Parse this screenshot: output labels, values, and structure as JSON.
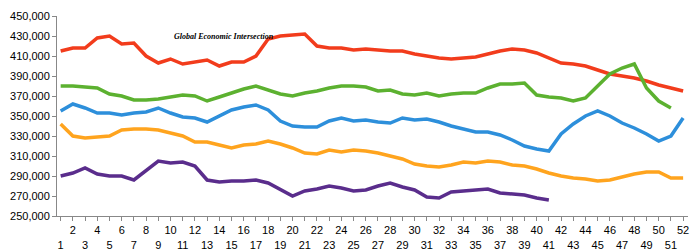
{
  "chart_data": {
    "type": "line",
    "annotations": [
      "Global Economic Intersection"
    ],
    "categories": [
      "1",
      "2",
      "3",
      "4",
      "5",
      "6",
      "7",
      "8",
      "9",
      "10",
      "11",
      "12",
      "13",
      "14",
      "15",
      "16",
      "17",
      "18",
      "19",
      "20",
      "21",
      "22",
      "23",
      "24",
      "25",
      "26",
      "27",
      "28",
      "29",
      "30",
      "31",
      "32",
      "33",
      "34",
      "35",
      "36",
      "37",
      "38",
      "39",
      "40",
      "41",
      "42",
      "43",
      "44",
      "45",
      "46",
      "47",
      "48",
      "49",
      "50",
      "51",
      "52"
    ],
    "series": [
      {
        "color": "#f23c1c",
        "values": [
          415000,
          418000,
          418000,
          428000,
          430000,
          422000,
          423000,
          410000,
          403000,
          407000,
          402000,
          404000,
          406000,
          400000,
          404000,
          404000,
          410000,
          427000,
          430000,
          431000,
          432000,
          420000,
          418000,
          418000,
          416000,
          417000,
          416000,
          415000,
          415000,
          412000,
          410000,
          408000,
          407000,
          408000,
          409000,
          412000,
          415000,
          417000,
          416000,
          413000,
          408000,
          403000,
          402000,
          400000,
          396000,
          392000,
          390000,
          388000,
          385000,
          381000,
          378000,
          375000
        ]
      },
      {
        "color": "#5cb130",
        "values": [
          380000,
          380000,
          379000,
          378000,
          372000,
          370000,
          366000,
          366000,
          367000,
          369000,
          371000,
          370000,
          365000,
          369000,
          373000,
          377000,
          380000,
          376000,
          372000,
          370000,
          373000,
          375000,
          378000,
          380000,
          380000,
          379000,
          375000,
          376000,
          372000,
          371000,
          373000,
          370000,
          372000,
          373000,
          373000,
          378000,
          382000,
          382000,
          383000,
          371000,
          369000,
          368000,
          365000,
          368000,
          380000,
          392000,
          398000,
          402000,
          378000,
          365000,
          358000,
          null
        ]
      },
      {
        "color": "#2d8fdb",
        "values": [
          355000,
          362000,
          358000,
          353000,
          353000,
          351000,
          353000,
          354000,
          358000,
          353000,
          349000,
          348000,
          344000,
          350000,
          356000,
          359000,
          361000,
          356000,
          345000,
          340000,
          339000,
          339000,
          345000,
          348000,
          345000,
          346000,
          344000,
          343000,
          348000,
          346000,
          347000,
          344000,
          340000,
          337000,
          334000,
          334000,
          331000,
          326000,
          320000,
          317000,
          315000,
          332000,
          342000,
          350000,
          355000,
          350000,
          343000,
          338000,
          332000,
          325000,
          330000,
          348000
        ]
      },
      {
        "color": "#ffa41e",
        "values": [
          342000,
          330000,
          328000,
          329000,
          330000,
          336000,
          337000,
          337000,
          336000,
          333000,
          330000,
          324000,
          324000,
          321000,
          318000,
          321000,
          322000,
          325000,
          322000,
          318000,
          313000,
          312000,
          316000,
          314000,
          316000,
          315000,
          313000,
          310000,
          307000,
          302000,
          300000,
          299000,
          301000,
          304000,
          303000,
          305000,
          304000,
          301000,
          300000,
          297000,
          293000,
          290000,
          288000,
          287000,
          285000,
          286000,
          289000,
          292000,
          294000,
          294000,
          288000,
          288000
        ]
      },
      {
        "color": "#5a2d8c",
        "values": [
          290000,
          293000,
          298000,
          292000,
          290000,
          290000,
          286000,
          296000,
          305000,
          303000,
          304000,
          300000,
          286000,
          284000,
          285000,
          285000,
          286000,
          283000,
          276000,
          270000,
          275000,
          277000,
          280000,
          278000,
          275000,
          276000,
          280000,
          283000,
          279000,
          276000,
          269000,
          268000,
          274000,
          275000,
          276000,
          277000,
          273000,
          272000,
          271000,
          268000,
          266000,
          null,
          null,
          null,
          null,
          null,
          null,
          null,
          null,
          null,
          null,
          null
        ]
      }
    ],
    "ylim": [
      250000,
      450000
    ],
    "yticks": [
      {
        "value": 250000,
        "label": "250,000"
      },
      {
        "value": 270000,
        "label": "270,000"
      },
      {
        "value": 290000,
        "label": "290,000"
      },
      {
        "value": 310000,
        "label": "310,000"
      },
      {
        "value": 330000,
        "label": "330,000"
      },
      {
        "value": 350000,
        "label": "350,000"
      },
      {
        "value": 370000,
        "label": "370,000"
      },
      {
        "value": 390000,
        "label": "390,000"
      },
      {
        "value": 410000,
        "label": "410,000"
      },
      {
        "value": 430000,
        "label": "430,000"
      },
      {
        "value": 450000,
        "label": "450,000"
      }
    ],
    "grid": false
  }
}
